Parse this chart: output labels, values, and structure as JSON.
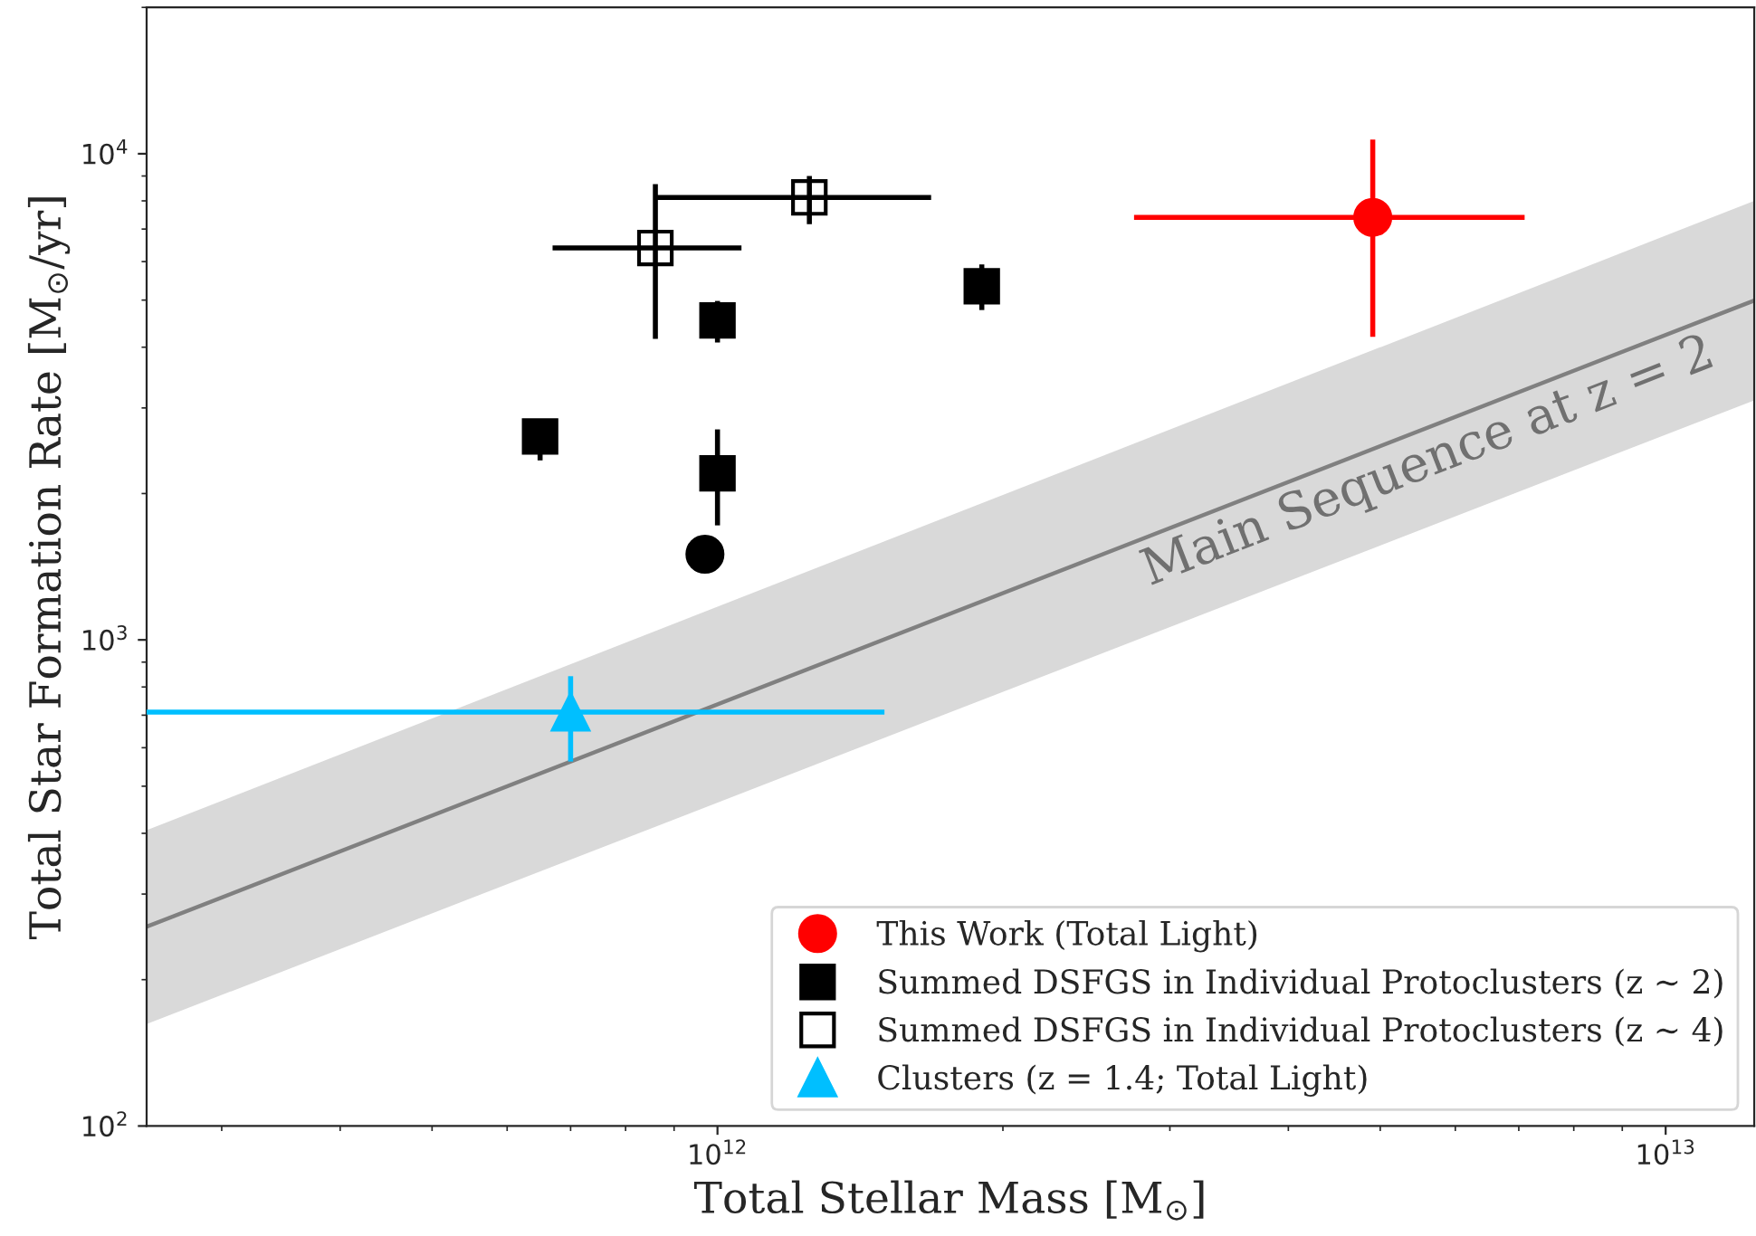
{
  "chart_data": {
    "type": "scatter",
    "xlabel": "Total Stellar Mass [M$_{⊙}$]",
    "ylabel": "Total Star Formation Rate [M$_{⊙}$/yr]",
    "log": "xy",
    "xlim": [
      250000000000.0,
      12400000000000.0
    ],
    "ylim": [
      100,
      20000
    ],
    "xticks": [
      {
        "value": 1000000000000.0,
        "label": "10$^{12}$"
      },
      {
        "value": 10000000000000.0,
        "label": "10$^{13}$"
      }
    ],
    "yticks": [
      {
        "value": 100,
        "label": "10$^{2}$"
      },
      {
        "value": 1000,
        "label": "10$^{3}$"
      },
      {
        "value": 10000,
        "label": "10$^{4}$"
      }
    ],
    "grid": false,
    "legend": "bottom right",
    "annotations": [
      "Main Sequence at z = 2"
    ],
    "series": [
      {
        "type": "line",
        "color": "#808080",
        "x": [
          250000000000.0,
          12400000000000.0
        ],
        "values": [
          257,
          4990
        ],
        "lower": [
          162,
          3110
        ],
        "upper": [
          406,
          8000
        ],
        "marker": "none"
      },
      {
        "name": "This Work (Total Light)",
        "color": "#ff0000",
        "marker": "circle",
        "x": [
          4910000000000.0
        ],
        "values": [
          7400
        ],
        "errors": [
          [
            4200,
            10700
          ]
        ],
        "xerrors": [
          [
            2750000000000.0,
            7100000000000.0
          ]
        ]
      },
      {
        "color": "#000000",
        "marker": "circle",
        "x": [
          970000000000.0
        ],
        "values": [
          1500
        ]
      },
      {
        "name": "Summed DSFGS in Individual Protoclusters (z ∼ 2)",
        "color": "#000000",
        "marker": "square",
        "x": [
          650000000000.0,
          1000000000000.0,
          1000000000000.0,
          1900000000000.0
        ],
        "values": [
          2620,
          4540,
          2200,
          5340
        ],
        "errors": [
          [
            2340,
            2820
          ],
          [
            4090,
            4980
          ],
          [
            1720,
            2710
          ],
          [
            4770,
            5920
          ]
        ]
      },
      {
        "name": "Summed DSFGS in Individual Protoclusters (z ∼ 4)",
        "color": "#000000",
        "marker": "square",
        "colors": [
          "#ffffff",
          "#ffffff"
        ],
        "x": [
          860000000000.0,
          1250000000000.0
        ],
        "values": [
          6400,
          8130
        ],
        "errors": [
          [
            4160,
            8660
          ],
          [
            7160,
            9000
          ]
        ],
        "xerrors": [
          [
            670000000000.0,
            1060000000000.0
          ],
          [
            860000000000.0,
            1680000000000.0
          ]
        ]
      },
      {
        "name": "Clusters (z = 1.4; Total Light)",
        "color": "#00bfff",
        "marker": "triangle",
        "x": [
          700000000000.0
        ],
        "values": [
          710
        ],
        "errors": [
          [
            562,
            842
          ]
        ],
        "xerrors": [
          [
            250000000000.0,
            1500000000000.0
          ]
        ]
      }
    ]
  }
}
